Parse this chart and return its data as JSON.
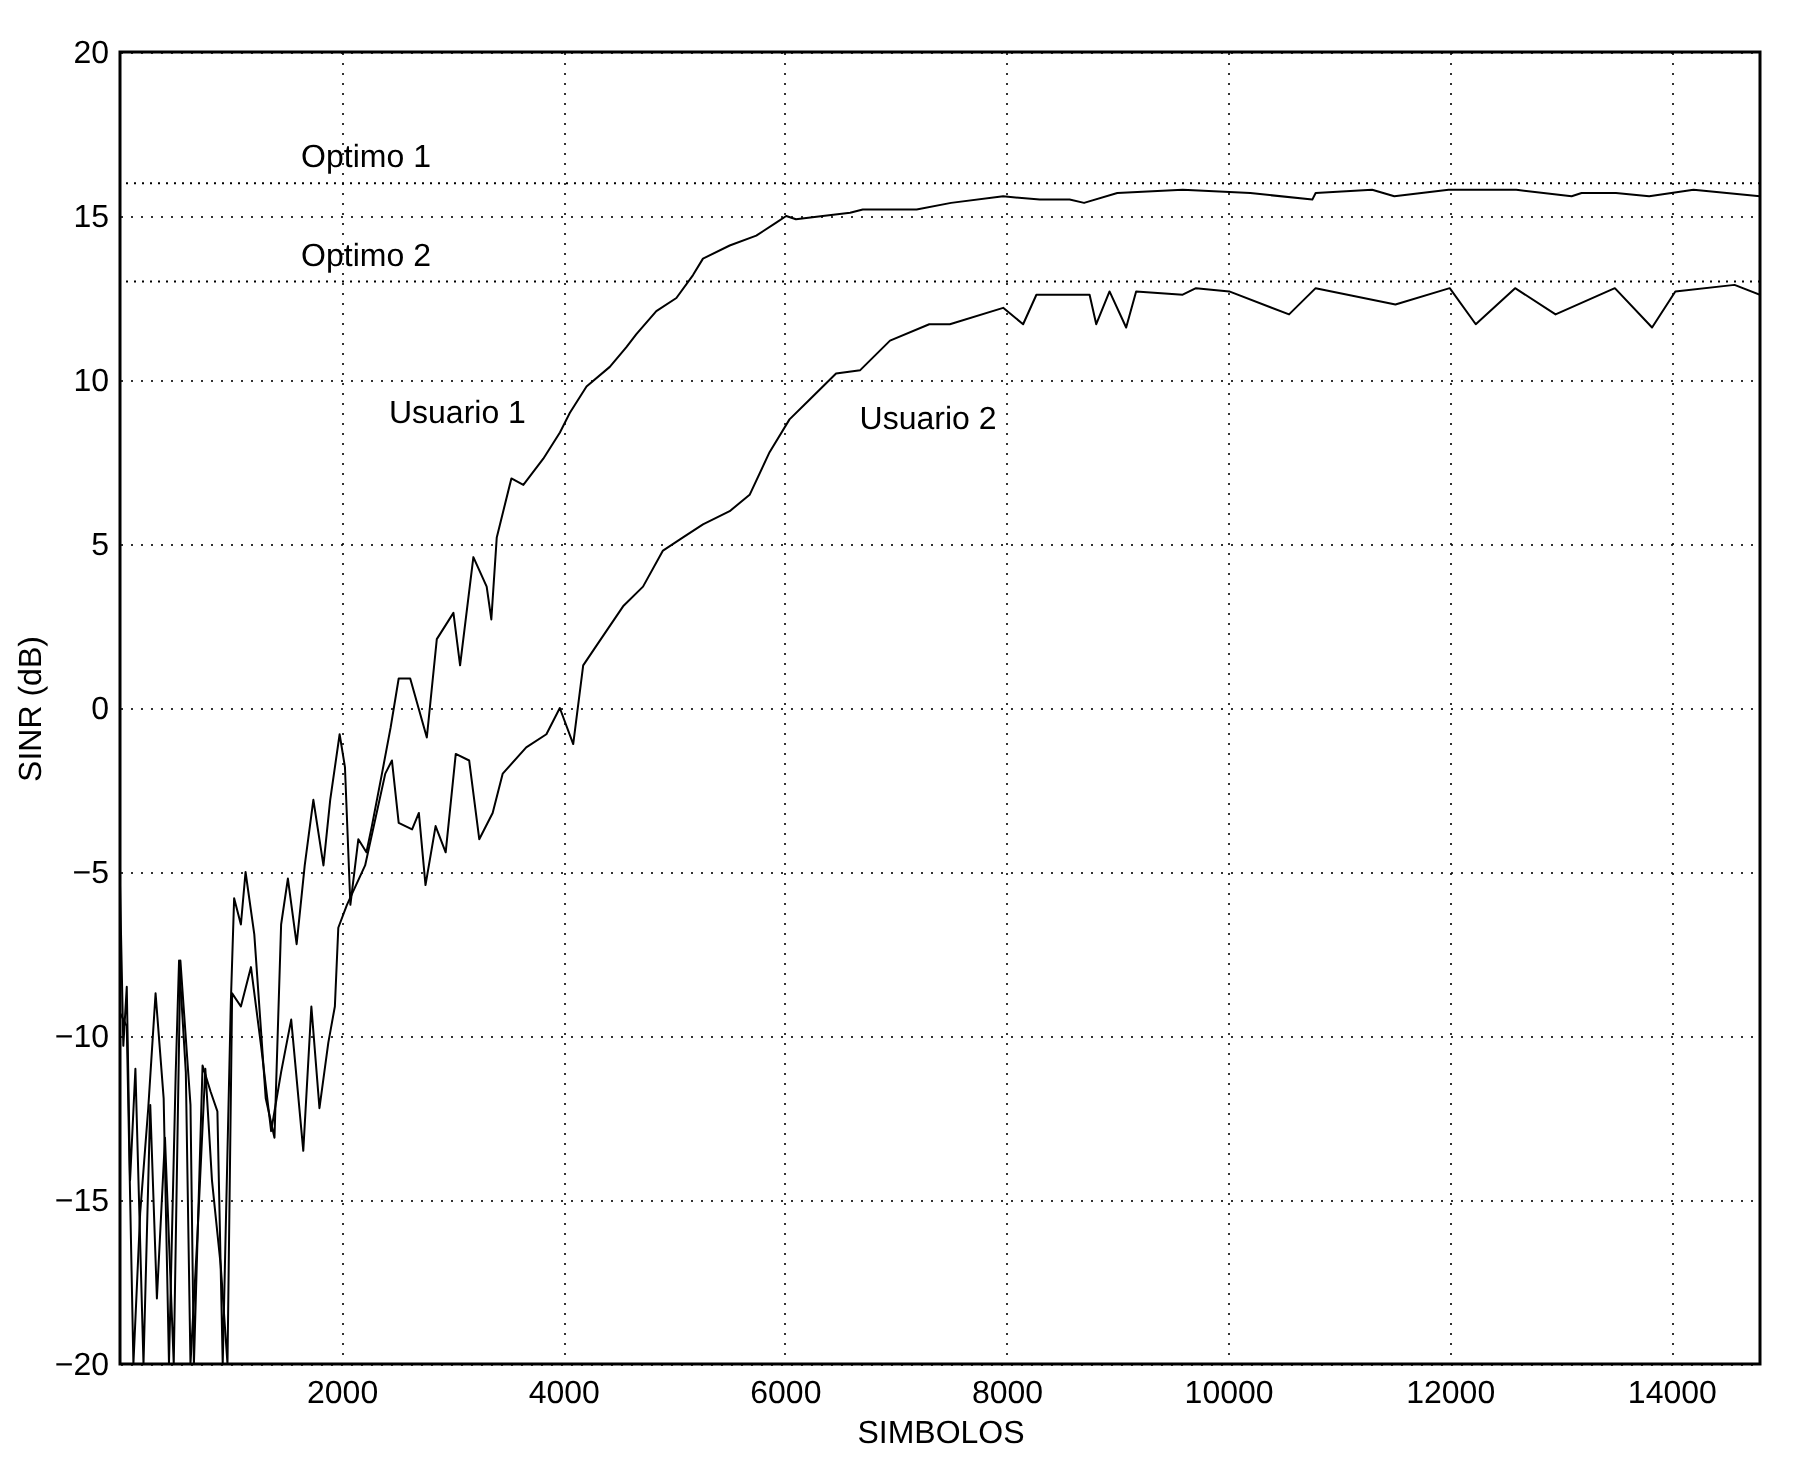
{
  "chart_data": {
    "type": "line",
    "xlabel": "SIMBOLOS",
    "ylabel": "SINR (dB)",
    "xlim": [
      0,
      14800
    ],
    "ylim": [
      -20,
      20
    ],
    "xticks": [
      2000,
      4000,
      6000,
      8000,
      10000,
      12000,
      14000
    ],
    "yticks": [
      -20,
      -15,
      -10,
      -5,
      0,
      5,
      10,
      15,
      20
    ],
    "grid": true,
    "legend": false,
    "line_style": "solid",
    "marker": "none",
    "series": [
      {
        "name": "Usuario 1",
        "color": "#000000",
        "x": [
          0,
          30,
          61,
          91,
          139,
          212,
          273,
          333,
          406,
          485,
          545,
          636,
          667,
          745,
          818,
          879,
          927,
          1000,
          1030,
          1091,
          1133,
          1212,
          1315,
          1394,
          1454,
          1515,
          1594,
          1667,
          1745,
          1836,
          1897,
          1982,
          2030,
          2079,
          2151,
          2224,
          2273,
          2364,
          2442,
          2515,
          2619,
          2769,
          2859,
          3009,
          3069,
          3189,
          3309,
          3351,
          3400,
          3532,
          3640,
          3820,
          3970,
          4060,
          4210,
          4420,
          4570,
          4660,
          4840,
          5021,
          5171,
          5261,
          5502,
          5742,
          5922,
          6012,
          6100,
          6342,
          6589,
          6703,
          7189,
          7500,
          7970,
          8300,
          8570,
          8700,
          9000,
          9590,
          10200,
          10760,
          10790,
          11300,
          11500,
          11990,
          12600,
          13100,
          13190,
          13500,
          13800,
          14200,
          14800
        ],
        "values": [
          -5.4,
          -10.3,
          -8.5,
          -14.4,
          -11.0,
          -20,
          -12.1,
          -18.0,
          -13.1,
          -20,
          -7.7,
          -12.1,
          -20,
          -10.9,
          -11.7,
          -12.3,
          -20,
          -9.0,
          -5.8,
          -6.6,
          -5.0,
          -6.9,
          -11.9,
          -13.1,
          -6.6,
          -5.2,
          -7.2,
          -4.8,
          -2.8,
          -4.8,
          -2.8,
          -0.8,
          -1.8,
          -6.0,
          -4.0,
          -4.4,
          -3.6,
          -2.0,
          -0.6,
          0.9,
          0.9,
          -0.9,
          2.1,
          2.9,
          1.3,
          4.6,
          3.7,
          2.7,
          5.2,
          7.0,
          6.8,
          7.6,
          8.4,
          9.0,
          9.8,
          10.4,
          11.0,
          11.4,
          12.1,
          12.5,
          13.2,
          13.7,
          14.1,
          14.4,
          14.8,
          15.0,
          14.9,
          15.0,
          15.1,
          15.2,
          15.2,
          15.4,
          15.6,
          15.5,
          15.5,
          15.4,
          15.7,
          15.8,
          15.7,
          15.5,
          15.7,
          15.8,
          15.6,
          15.8,
          15.8,
          15.6,
          15.7,
          15.7,
          15.6,
          15.8,
          15.6
        ]
      },
      {
        "name": "Usuario 2",
        "color": "#000000",
        "x": [
          0,
          61,
          121,
          182,
          255,
          321,
          394,
          442,
          503,
          533,
          594,
          636,
          697,
          770,
          830,
          909,
          970,
          1012,
          1091,
          1182,
          1273,
          1364,
          1454,
          1545,
          1654,
          1727,
          1800,
          1880,
          1939,
          1970,
          2048,
          2212,
          2394,
          2454,
          2515,
          2636,
          2697,
          2757,
          2848,
          2939,
          3030,
          3151,
          3242,
          3363,
          3454,
          3666,
          3848,
          3969,
          4090,
          4180,
          4300,
          4540,
          4720,
          4900,
          5081,
          5261,
          5502,
          5682,
          5862,
          6042,
          6222,
          6462,
          6680,
          6949,
          7303,
          7489,
          7970,
          8150,
          8270,
          8750,
          8810,
          8930,
          9080,
          9170,
          9590,
          9710,
          10010,
          10550,
          10790,
          11510,
          12000,
          12235,
          12590,
          12955,
          13490,
          13826,
          14036,
          14570,
          14800
        ],
        "values": [
          -9.3,
          -9.7,
          -20,
          -15.4,
          -12.2,
          -8.7,
          -11.9,
          -20,
          -11.1,
          -7.7,
          -11.1,
          -20,
          -16.2,
          -11.0,
          -14.4,
          -17.0,
          -20,
          -8.7,
          -9.1,
          -7.9,
          -10.3,
          -12.9,
          -11.1,
          -9.5,
          -13.5,
          -9.1,
          -12.2,
          -10.2,
          -9.1,
          -6.7,
          -6.0,
          -4.8,
          -2.0,
          -1.6,
          -3.5,
          -3.7,
          -3.2,
          -5.4,
          -3.6,
          -4.4,
          -1.4,
          -1.6,
          -4.0,
          -3.2,
          -2.0,
          -1.2,
          -0.8,
          0,
          -1.1,
          1.3,
          1.9,
          3.1,
          3.7,
          4.8,
          5.2,
          5.6,
          6.0,
          6.5,
          7.8,
          8.8,
          9.4,
          10.2,
          10.3,
          11.2,
          11.7,
          11.7,
          12.2,
          11.7,
          12.6,
          12.6,
          11.7,
          12.7,
          11.6,
          12.7,
          12.6,
          12.8,
          12.7,
          12.0,
          12.8,
          12.3,
          12.8,
          11.7,
          12.8,
          12.0,
          12.8,
          11.6,
          12.7,
          12.9,
          12.6
        ]
      }
    ],
    "ref_lines": [
      {
        "axis": "y",
        "value": 16,
        "label": "Optimo 1",
        "color": "#000000",
        "line_style": "dotted"
      },
      {
        "axis": "y",
        "value": 13,
        "label": "Optimo 2",
        "color": "#000000",
        "line_style": "dotted"
      }
    ]
  }
}
